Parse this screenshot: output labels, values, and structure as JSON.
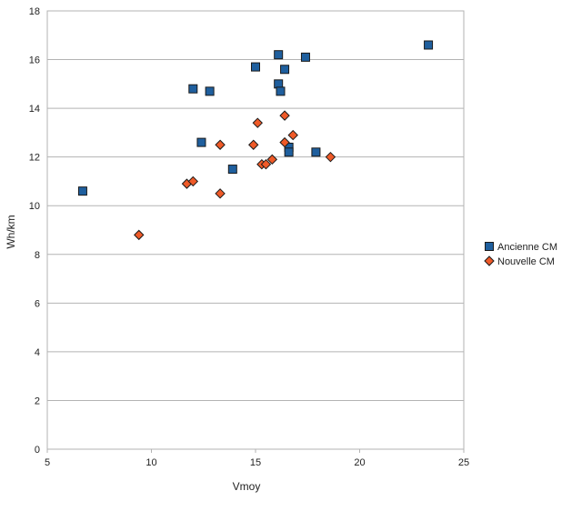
{
  "chart_data": {
    "type": "scatter",
    "title": "",
    "xlabel": "Vmoy",
    "ylabel": "Wh/km",
    "xlim": [
      5,
      25
    ],
    "ylim": [
      0,
      18
    ],
    "x_ticks": [
      5,
      10,
      15,
      20,
      25
    ],
    "y_ticks": [
      0,
      2,
      4,
      6,
      8,
      10,
      12,
      14,
      16,
      18
    ],
    "grid": "horizontal",
    "legend_position": "right",
    "series": [
      {
        "name": "Ancienne CM",
        "marker": "square",
        "color": "#1f5f9e",
        "points": [
          {
            "x": 6.7,
            "y": 10.6
          },
          {
            "x": 12.0,
            "y": 14.8
          },
          {
            "x": 12.4,
            "y": 12.6
          },
          {
            "x": 12.8,
            "y": 14.7
          },
          {
            "x": 13.9,
            "y": 11.5
          },
          {
            "x": 15.0,
            "y": 15.7
          },
          {
            "x": 16.1,
            "y": 16.2
          },
          {
            "x": 16.1,
            "y": 15.0
          },
          {
            "x": 16.2,
            "y": 14.7
          },
          {
            "x": 16.4,
            "y": 15.6
          },
          {
            "x": 16.6,
            "y": 12.4
          },
          {
            "x": 16.6,
            "y": 12.2
          },
          {
            "x": 17.4,
            "y": 16.1
          },
          {
            "x": 17.9,
            "y": 12.2
          },
          {
            "x": 23.3,
            "y": 16.6
          }
        ]
      },
      {
        "name": "Nouvelle CM",
        "marker": "diamond",
        "color": "#ef5a28",
        "points": [
          {
            "x": 9.4,
            "y": 8.8
          },
          {
            "x": 11.7,
            "y": 10.9
          },
          {
            "x": 12.0,
            "y": 11.0
          },
          {
            "x": 13.3,
            "y": 12.5
          },
          {
            "x": 13.3,
            "y": 10.5
          },
          {
            "x": 14.9,
            "y": 12.5
          },
          {
            "x": 15.1,
            "y": 13.4
          },
          {
            "x": 15.3,
            "y": 11.7
          },
          {
            "x": 15.5,
            "y": 11.7
          },
          {
            "x": 15.8,
            "y": 11.9
          },
          {
            "x": 16.4,
            "y": 13.7
          },
          {
            "x": 16.4,
            "y": 12.6
          },
          {
            "x": 16.8,
            "y": 12.9
          },
          {
            "x": 18.6,
            "y": 12.0
          }
        ]
      }
    ]
  }
}
